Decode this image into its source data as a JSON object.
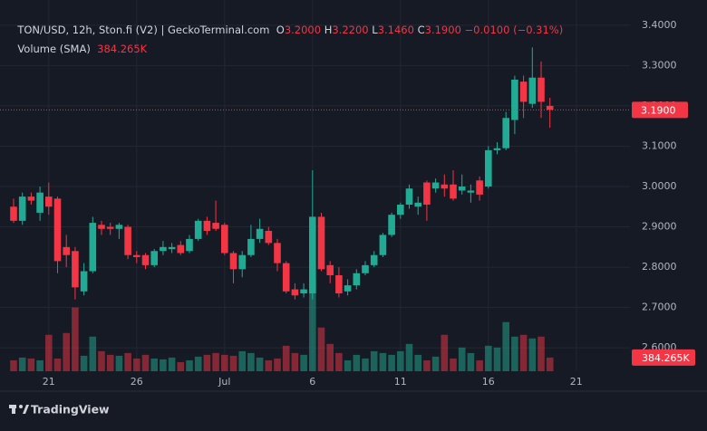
{
  "chart_data": {
    "type": "candlestick",
    "header": {
      "symbol": "TON/USD, 12h, Ston.fi (V2) | GeckoTerminal.com",
      "ohlc": [
        {
          "key": "O",
          "value": "3.2000"
        },
        {
          "key": "H",
          "value": "3.2200"
        },
        {
          "key": "L",
          "value": "3.1460"
        },
        {
          "key": "C",
          "value": "3.1900"
        }
      ],
      "change": "−0.0100 (−0.31%)"
    },
    "volume_title": "Volume (SMA)",
    "volume_last_label": "384.265K",
    "brand": "TradingView",
    "categories": [
      null,
      null,
      null,
      null,
      "21",
      null,
      null,
      null,
      null,
      null,
      null,
      null,
      null,
      null,
      "26",
      null,
      null,
      null,
      null,
      null,
      null,
      null,
      null,
      null,
      "Jul",
      null,
      null,
      null,
      null,
      null,
      null,
      null,
      null,
      null,
      "6",
      null,
      null,
      null,
      null,
      null,
      null,
      null,
      null,
      null,
      "11",
      null,
      null,
      null,
      null,
      null,
      null,
      null,
      null,
      null,
      "16",
      null,
      null,
      null,
      null,
      null,
      null,
      null,
      null,
      null,
      "21"
    ],
    "open": [
      2.95,
      2.915,
      2.975,
      2.935,
      2.975,
      2.97,
      2.85,
      2.84,
      2.74,
      2.79,
      2.905,
      2.9,
      2.895,
      2.9,
      2.83,
      2.83,
      2.805,
      2.84,
      2.845,
      2.855,
      2.84,
      2.87,
      2.915,
      2.91,
      2.905,
      2.835,
      2.795,
      2.83,
      2.87,
      2.89,
      2.86,
      2.81,
      2.745,
      2.735,
      2.735,
      2.925,
      2.805,
      2.78,
      2.74,
      2.755,
      2.785,
      2.805,
      2.83,
      2.88,
      2.93,
      2.955,
      2.95,
      3.01,
      2.995,
      3.005,
      3.005,
      2.99,
      2.985,
      3.015,
      3.0,
      3.09,
      3.095,
      3.165,
      3.26,
      3.205,
      3.27,
      3.2,
      null,
      null,
      null
    ],
    "high": [
      2.97,
      2.985,
      2.985,
      3.0,
      3.01,
      2.975,
      2.88,
      2.85,
      2.81,
      2.925,
      2.915,
      2.91,
      2.91,
      2.905,
      2.84,
      2.835,
      2.845,
      2.865,
      2.86,
      2.865,
      2.88,
      2.92,
      2.925,
      2.965,
      2.91,
      2.84,
      2.84,
      2.905,
      2.92,
      2.9,
      2.87,
      2.815,
      2.76,
      2.76,
      3.04,
      2.935,
      2.815,
      2.8,
      2.77,
      2.795,
      2.815,
      2.84,
      2.885,
      2.935,
      2.96,
      3.005,
      2.975,
      3.015,
      3.02,
      3.03,
      3.04,
      3.03,
      3.005,
      3.025,
      3.1,
      3.11,
      3.185,
      3.275,
      3.275,
      3.345,
      3.31,
      3.22,
      null,
      null,
      null
    ],
    "low": [
      2.91,
      2.905,
      2.955,
      2.915,
      2.93,
      2.785,
      2.8,
      2.72,
      2.73,
      2.785,
      2.88,
      2.88,
      2.87,
      2.82,
      2.81,
      2.795,
      2.8,
      2.83,
      2.835,
      2.83,
      2.835,
      2.865,
      2.88,
      2.89,
      2.83,
      2.76,
      2.775,
      2.825,
      2.86,
      2.855,
      2.79,
      2.735,
      2.72,
      2.725,
      2.72,
      2.79,
      2.76,
      2.725,
      2.73,
      2.745,
      2.78,
      2.8,
      2.825,
      2.875,
      2.92,
      2.945,
      2.93,
      2.915,
      2.985,
      2.975,
      2.965,
      2.98,
      2.96,
      2.965,
      2.995,
      3.08,
      3.09,
      3.13,
      3.17,
      3.195,
      3.17,
      3.146,
      null,
      null,
      null
    ],
    "close": [
      2.915,
      2.975,
      2.965,
      2.985,
      2.95,
      2.815,
      2.83,
      2.75,
      2.79,
      2.91,
      2.895,
      2.895,
      2.905,
      2.83,
      2.825,
      2.805,
      2.84,
      2.85,
      2.85,
      2.835,
      2.87,
      2.915,
      2.89,
      2.895,
      2.835,
      2.795,
      2.83,
      2.87,
      2.895,
      2.86,
      2.81,
      2.74,
      2.73,
      2.745,
      2.925,
      2.795,
      2.78,
      2.735,
      2.755,
      2.785,
      2.805,
      2.83,
      2.88,
      2.93,
      2.955,
      2.995,
      2.96,
      2.955,
      3.01,
      2.995,
      2.97,
      3.0,
      2.99,
      2.98,
      3.09,
      3.095,
      3.17,
      3.265,
      3.21,
      3.27,
      3.21,
      3.19,
      null,
      null,
      null
    ],
    "volume": [
      307000,
      384000,
      358000,
      307000,
      1024000,
      358000,
      1075000,
      1792000,
      435000,
      973000,
      563000,
      461000,
      435000,
      512000,
      358000,
      461000,
      358000,
      333000,
      384000,
      256000,
      307000,
      410000,
      461000,
      512000,
      461000,
      435000,
      563000,
      512000,
      384000,
      307000,
      358000,
      717000,
      512000,
      461000,
      2611000,
      1229000,
      768000,
      512000,
      307000,
      461000,
      358000,
      563000,
      512000,
      461000,
      563000,
      768000,
      461000,
      307000,
      410000,
      1024000,
      358000,
      666000,
      512000,
      307000,
      717000,
      666000,
      1382000,
      973000,
      1024000,
      922000,
      973000,
      384265,
      null,
      null,
      null
    ],
    "ylim": [
      2.542,
      3.44
    ],
    "volume_lim": [
      0,
      2800000
    ],
    "yticks": [
      {
        "value": 3.4,
        "label": "3.4000"
      },
      {
        "value": 3.3,
        "label": "3.3000"
      },
      {
        "value": 3.2,
        "label": "3.2000"
      },
      {
        "value": 3.1,
        "label": "3.1000"
      },
      {
        "value": 3.0,
        "label": "3.0000"
      },
      {
        "value": 2.9,
        "label": "2.9000"
      },
      {
        "value": 2.8,
        "label": "2.8000"
      },
      {
        "value": 2.7,
        "label": "2.7000"
      },
      {
        "value": 2.6,
        "label": "2.6000"
      }
    ],
    "last_price": {
      "value": 3.19,
      "label": "3.1900"
    },
    "grid": true,
    "up_color": "#22ab94",
    "down_color": "#f23645"
  }
}
